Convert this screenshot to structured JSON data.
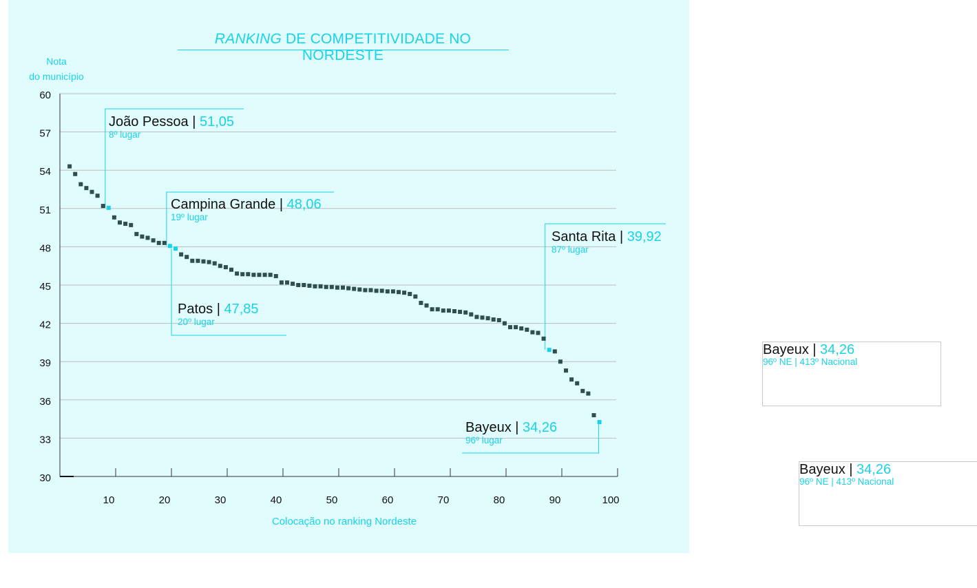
{
  "title_italic": "RANKING",
  "title_rest": " DE COMPETITIVIDADE NO NORDESTE",
  "y_axis_label_line1": "Nota",
  "y_axis_label_line2": "do município",
  "x_axis_label": "Colocação no ranking Nordeste",
  "colors": {
    "panel": "#e0fcfd",
    "accent": "#1ad3e6",
    "marker": "#2f4f4f",
    "grid": "#bdbdbd"
  },
  "callouts": [
    {
      "id": "joao-pessoa",
      "name": "João Pessoa",
      "sep": " | ",
      "value": "51,05",
      "rank": "8º lugar"
    },
    {
      "id": "campina-grande",
      "name": "Campina Grande",
      "sep": " | ",
      "value": "48,06",
      "rank": "19º lugar"
    },
    {
      "id": "patos",
      "name": "Patos",
      "sep": " | ",
      "value": "47,85",
      "rank": "20º lugar"
    },
    {
      "id": "santa-rita",
      "name": "Santa Rita",
      "sep": " | ",
      "value": "39,92",
      "rank": "87º lugar"
    },
    {
      "id": "bayeux",
      "name": "Bayeux",
      "sep": " | ",
      "value": "34,26",
      "rank": "96º lugar"
    }
  ],
  "side_cards": [
    {
      "name": "Bayeux",
      "sep": " | ",
      "value": "34,26",
      "rank": "96º NE | 413º Nacional"
    },
    {
      "name": "Bayeux",
      "sep": " | ",
      "value": "34,26",
      "rank": "96º NE | 413º Nacional"
    }
  ],
  "chart_data": {
    "type": "scatter",
    "xlim": [
      0,
      100
    ],
    "ylim": [
      30,
      60
    ],
    "x_ticks": [
      10,
      20,
      30,
      40,
      50,
      60,
      70,
      80,
      90,
      100
    ],
    "y_ticks": [
      30,
      33,
      36,
      39,
      42,
      45,
      48,
      51,
      54,
      57,
      60
    ],
    "x_tick_labels": [
      "10",
      "20",
      "30",
      "40",
      "50",
      "60",
      "70",
      "80",
      "90",
      "100"
    ],
    "y_tick_labels": [
      "30",
      "33",
      "36",
      "39",
      "42",
      "45",
      "48",
      "51",
      "54",
      "57",
      "60"
    ],
    "grid": "horizontal",
    "series": [
      {
        "x": [
          1,
          2,
          3,
          4,
          5,
          6,
          7,
          8,
          9,
          10,
          11,
          12,
          13,
          14,
          15,
          16,
          17,
          18,
          19,
          20,
          21,
          22,
          23,
          24,
          25,
          26,
          27,
          28,
          29,
          30,
          31,
          32,
          33,
          34,
          35,
          36,
          37,
          38,
          39,
          40,
          41,
          42,
          43,
          44,
          45,
          46,
          47,
          48,
          49,
          50,
          51,
          52,
          53,
          54,
          55,
          56,
          57,
          58,
          59,
          60,
          61,
          62,
          63,
          64,
          65,
          66,
          67,
          68,
          69,
          70,
          71,
          72,
          73,
          74,
          75,
          76,
          77,
          78,
          79,
          80,
          81,
          82,
          83,
          84,
          85,
          86,
          87,
          88,
          89,
          90,
          91,
          92,
          93,
          94,
          95,
          96
        ],
        "y": [
          54.3,
          53.7,
          52.9,
          52.6,
          52.3,
          52.0,
          51.2,
          51.05,
          50.3,
          49.9,
          49.8,
          49.7,
          49.0,
          48.8,
          48.7,
          48.5,
          48.3,
          48.3,
          48.06,
          47.85,
          47.4,
          47.2,
          46.9,
          46.9,
          46.85,
          46.8,
          46.7,
          46.5,
          46.4,
          46.2,
          45.9,
          45.85,
          45.85,
          45.8,
          45.8,
          45.8,
          45.8,
          45.7,
          45.2,
          45.2,
          45.1,
          45.0,
          45.0,
          44.95,
          44.9,
          44.9,
          44.85,
          44.85,
          44.8,
          44.8,
          44.75,
          44.7,
          44.65,
          44.6,
          44.6,
          44.55,
          44.55,
          44.5,
          44.5,
          44.45,
          44.4,
          44.3,
          44.1,
          43.6,
          43.4,
          43.1,
          43.1,
          43.0,
          43.0,
          42.95,
          42.9,
          42.85,
          42.7,
          42.5,
          42.45,
          42.4,
          42.3,
          42.25,
          42.0,
          41.7,
          41.7,
          41.6,
          41.5,
          41.3,
          41.25,
          40.8,
          39.92,
          39.8,
          39.0,
          38.3,
          37.6,
          37.3,
          36.7,
          36.5,
          34.8,
          34.26
        ]
      }
    ],
    "highlighted_points": [
      {
        "x": 8,
        "y": 51.05
      },
      {
        "x": 19,
        "y": 48.06
      },
      {
        "x": 20,
        "y": 47.85
      },
      {
        "x": 87,
        "y": 39.92
      },
      {
        "x": 96,
        "y": 34.26
      }
    ]
  }
}
